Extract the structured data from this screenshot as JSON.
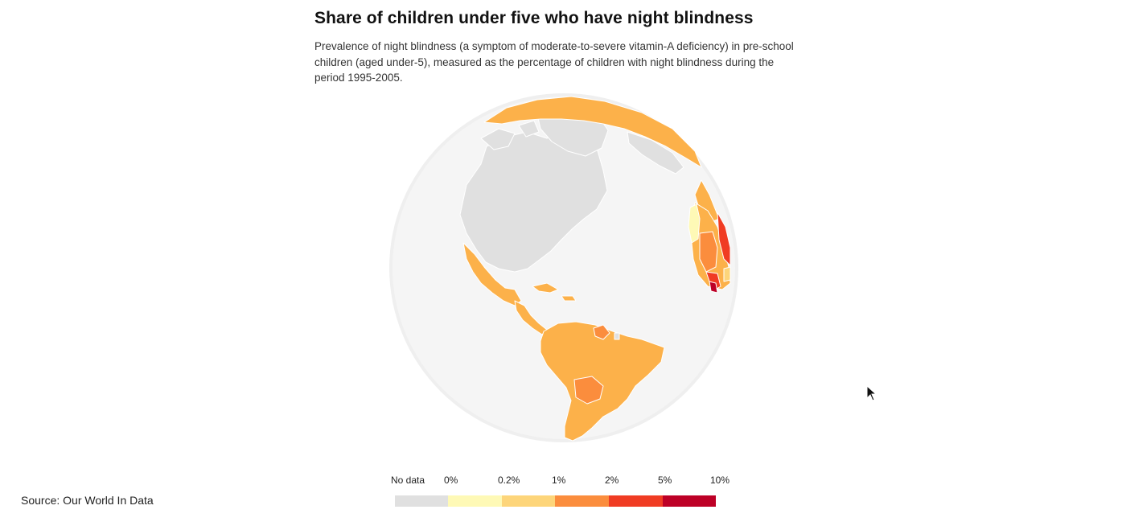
{
  "header": {
    "title": "Share of children under five who have night blindness",
    "subtitle": "Prevalence of night blindness (a symptom of moderate-to-severe vitamin-A deficiency) in pre-school children (aged under-5), measured as the percentage of children with night blindness during the period 1995-2005."
  },
  "legend": {
    "no_data_label": "No data",
    "bins": [
      {
        "label": "0%",
        "color": "#fef9b6"
      },
      {
        "label": "0.2%",
        "color": "#fdd57a"
      },
      {
        "label": "1%",
        "color": "#fb8d3d"
      },
      {
        "label": "2%",
        "color": "#f03c23"
      },
      {
        "label": "5%",
        "color": "#bd0026"
      },
      {
        "label": "10%",
        "color": "#bd0026"
      }
    ],
    "swatch_colors": [
      "#e0e0e0",
      "#fef9b6",
      "#fdd57a",
      "#fb8d3d",
      "#f03c23",
      "#bd0026"
    ]
  },
  "map": {
    "colors": {
      "no_data": "#e0e0e0",
      "ocean": "#f5f5f5",
      "globe_edge": "#e8e8e8",
      "border": "#ffffff",
      "level_0": "#fef9b6",
      "level_02": "#fdd57a",
      "level_1": "#fcb14a",
      "level_2": "#fb8d3d",
      "level_5": "#f03c23",
      "level_10": "#bd0026"
    }
  },
  "footer": {
    "source": "Source: Our World In Data"
  }
}
